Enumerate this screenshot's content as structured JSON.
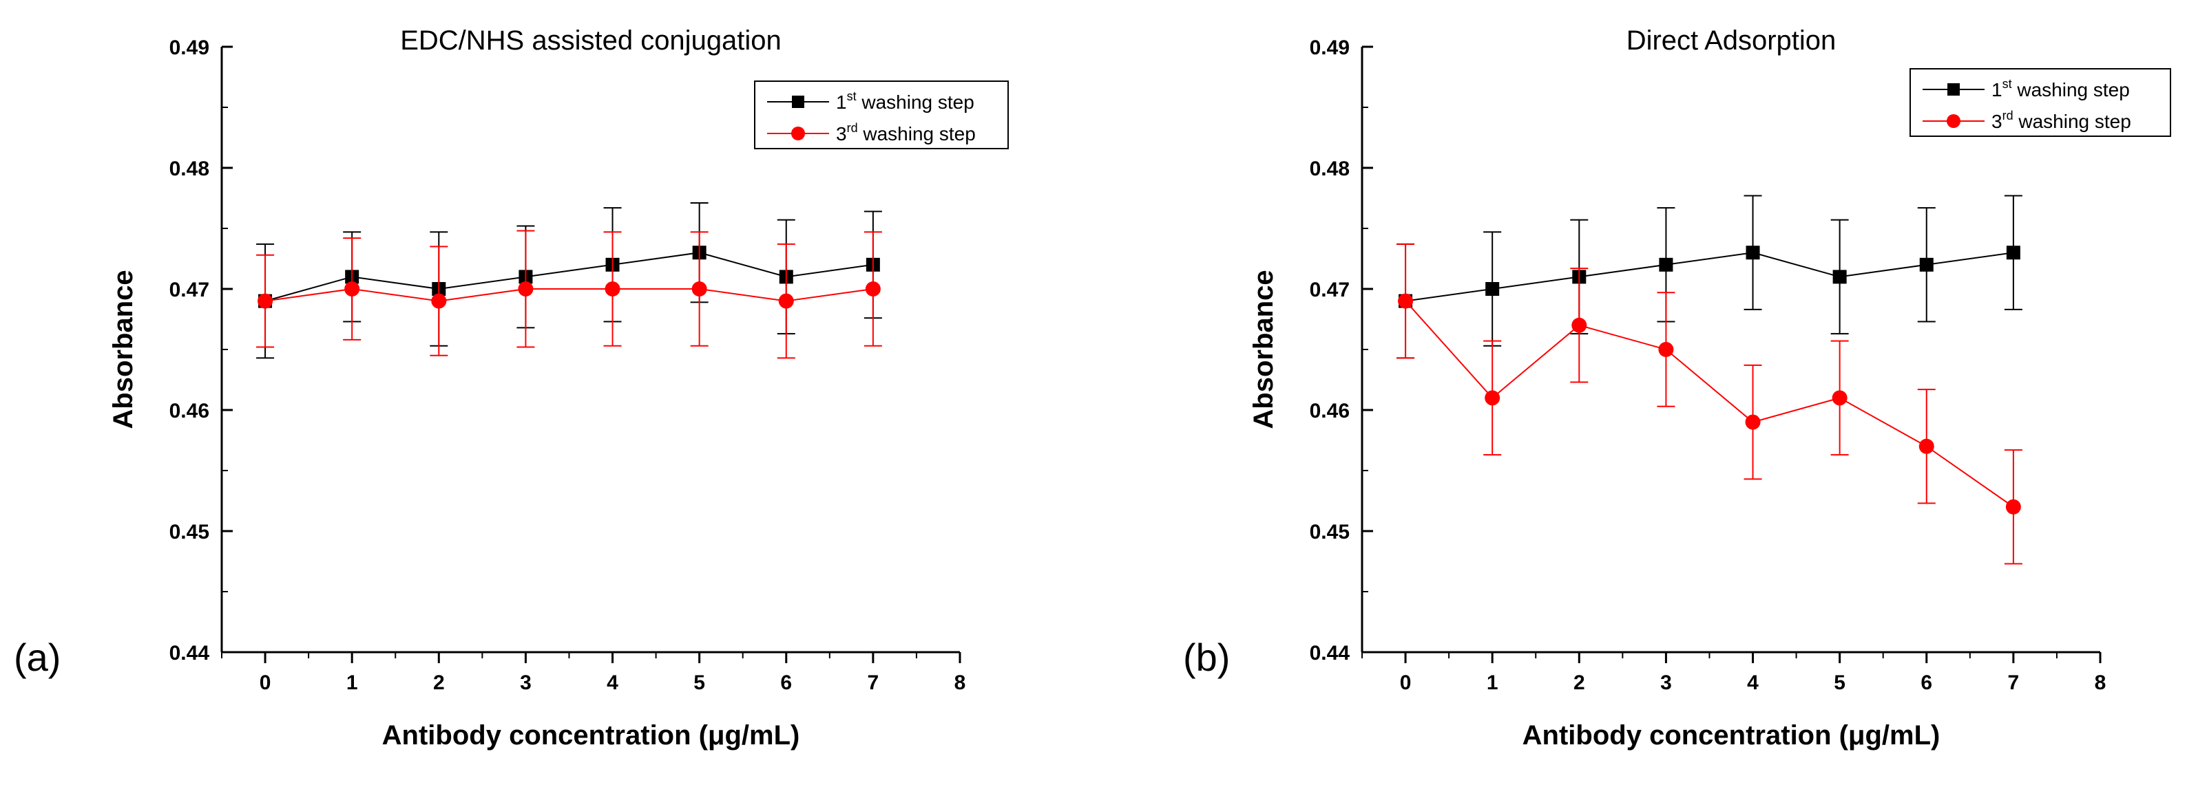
{
  "chart_data": [
    {
      "type": "line",
      "panel_label": "(a)",
      "title": "EDC/NHS assisted conjugation",
      "xlabel": "Antibody concentration (μg/mL)",
      "ylabel": "Absorbance",
      "xlim": [
        -0.5,
        8
      ],
      "ylim": [
        0.44,
        0.49
      ],
      "xticks": [
        0,
        1,
        2,
        3,
        4,
        5,
        6,
        7,
        8
      ],
      "yticks": [
        0.44,
        0.45,
        0.46,
        0.47,
        0.48,
        0.49
      ],
      "ytick_labels": [
        "0.44",
        "0.45",
        "0.46",
        "0.47",
        "0.48",
        "0.49"
      ],
      "x": [
        0,
        1,
        2,
        3,
        4,
        5,
        6,
        7
      ],
      "grid": false,
      "legend_position": "top-right",
      "series": [
        {
          "name_base": "1",
          "name_sup": "st",
          "name_rest": " washing step",
          "color": "#000000",
          "marker": "square",
          "values": [
            0.469,
            0.471,
            0.47,
            0.471,
            0.472,
            0.473,
            0.471,
            0.472
          ],
          "errors": [
            0.0047,
            0.0037,
            0.0047,
            0.0042,
            0.0047,
            0.0041,
            0.0047,
            0.0044
          ]
        },
        {
          "name_base": "3",
          "name_sup": "rd",
          "name_rest": " washing step",
          "color": "#ff0000",
          "marker": "circle",
          "values": [
            0.469,
            0.47,
            0.469,
            0.47,
            0.47,
            0.47,
            0.469,
            0.47
          ],
          "errors": [
            0.0038,
            0.0042,
            0.0045,
            0.0048,
            0.0047,
            0.0047,
            0.0047,
            0.0047
          ]
        }
      ]
    },
    {
      "type": "line",
      "panel_label": "(b)",
      "title": "Direct Adsorption",
      "xlabel": "Antibody concentration (μg/mL)",
      "ylabel": "Absorbance",
      "xlim": [
        -0.5,
        8
      ],
      "ylim": [
        0.44,
        0.49
      ],
      "xticks": [
        0,
        1,
        2,
        3,
        4,
        5,
        6,
        7,
        8
      ],
      "yticks": [
        0.44,
        0.45,
        0.46,
        0.47,
        0.48,
        0.49
      ],
      "ytick_labels": [
        "0.44",
        "0.45",
        "0.46",
        "0.47",
        "0.48",
        "0.49"
      ],
      "x": [
        0,
        1,
        2,
        3,
        4,
        5,
        6,
        7
      ],
      "grid": false,
      "legend_position": "top-right",
      "series": [
        {
          "name_base": "1",
          "name_sup": "st",
          "name_rest": " washing step",
          "color": "#000000",
          "marker": "square",
          "values": [
            0.469,
            0.47,
            0.471,
            0.472,
            0.473,
            0.471,
            0.472,
            0.473
          ],
          "errors": [
            0.0047,
            0.0047,
            0.0047,
            0.0047,
            0.0047,
            0.0047,
            0.0047,
            0.0047
          ]
        },
        {
          "name_base": "3",
          "name_sup": "rd",
          "name_rest": " washing step",
          "color": "#ff0000",
          "marker": "circle",
          "values": [
            0.469,
            0.461,
            0.467,
            0.465,
            0.459,
            0.461,
            0.457,
            0.452
          ],
          "errors": [
            0.0047,
            0.0047,
            0.0047,
            0.0047,
            0.0047,
            0.0047,
            0.0047,
            0.0047
          ]
        }
      ]
    }
  ]
}
